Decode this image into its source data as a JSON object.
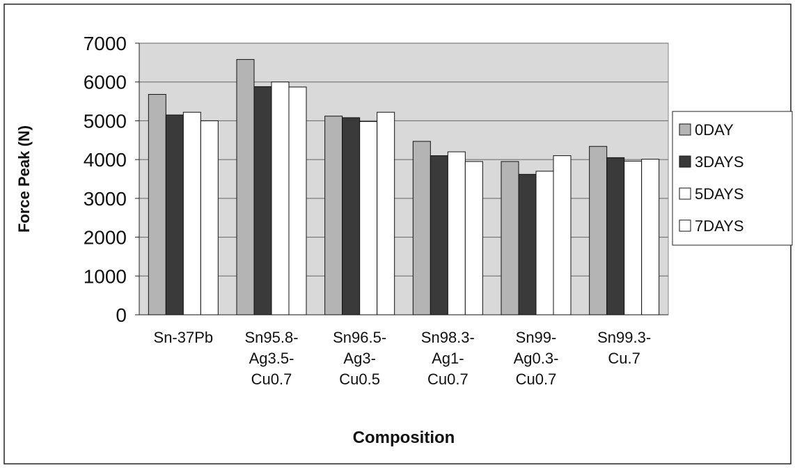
{
  "chart_data": {
    "type": "bar",
    "x_label": "Composition",
    "y_label": "Force Peak (N)",
    "categories": [
      [
        "Sn-37Pb"
      ],
      [
        "Sn95.8-",
        "Ag3.5-",
        "Cu0.7"
      ],
      [
        "Sn96.5-",
        "Ag3-",
        "Cu0.5"
      ],
      [
        "Sn98.3-",
        "Ag1-",
        "Cu0.7"
      ],
      [
        "Sn99-",
        "Ag0.3-",
        "Cu0.7"
      ],
      [
        "Sn99.3-",
        "Cu.7"
      ]
    ],
    "series": [
      {
        "name": "0DAY",
        "color": "#b4b4b4",
        "values": [
          5680,
          6580,
          5120,
          4470,
          3950,
          4340
        ]
      },
      {
        "name": "3DAYS",
        "color": "#3a3a3a",
        "values": [
          5150,
          5880,
          5080,
          4100,
          3620,
          4050
        ]
      },
      {
        "name": "5DAYS",
        "color": "#ffffff",
        "values": [
          5220,
          6000,
          4980,
          4200,
          3700,
          3960
        ]
      },
      {
        "name": "7DAYS",
        "color": "#ffffff",
        "values": [
          5000,
          5870,
          5220,
          3950,
          4100,
          4010
        ]
      }
    ],
    "ylim": [
      0,
      7000
    ],
    "yticks": [
      0,
      1000,
      2000,
      3000,
      4000,
      5000,
      6000,
      7000
    ],
    "grid": true,
    "legend": "right"
  }
}
